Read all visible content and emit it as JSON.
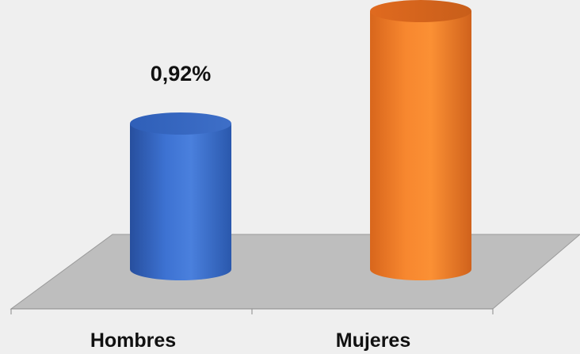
{
  "chart_data": {
    "type": "bar",
    "style": "3d-cylinder",
    "categories": [
      "Hombres",
      "Mujeres"
    ],
    "values": [
      0.92,
      1.63
    ],
    "data_labels": [
      "0,92%",
      ""
    ],
    "ylim": [
      0,
      1.75
    ],
    "grid": false,
    "legend": "none",
    "colors": {
      "bar_series": [
        "#3a6fcb",
        "#f58231"
      ],
      "floor": "#bdbdbd",
      "background": "#efefef"
    }
  }
}
